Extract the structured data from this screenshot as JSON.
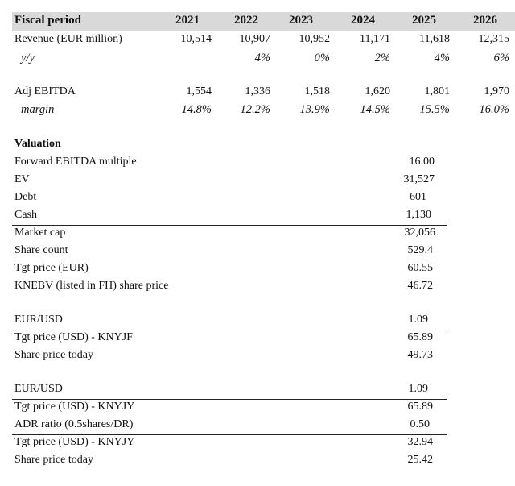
{
  "table": {
    "header_label": "Fiscal period",
    "years": [
      "2021",
      "2022",
      "2023",
      "2024",
      "2025",
      "2026"
    ],
    "rows": [
      {
        "label": "Revenue (EUR million)",
        "values": [
          "10,514",
          "10,907",
          "10,952",
          "11,171",
          "11,618",
          "12,315"
        ],
        "italic": false
      },
      {
        "label": "y/y",
        "values": [
          "",
          "4%",
          "0%",
          "2%",
          "4%",
          "6%"
        ],
        "italic": true
      },
      {
        "label": "Adj EBITDA",
        "values": [
          "1,554",
          "1,336",
          "1,518",
          "1,620",
          "1,801",
          "1,970"
        ],
        "italic": false
      },
      {
        "label": "margin",
        "values": [
          "14.8%",
          "12.2%",
          "13.9%",
          "14.5%",
          "15.5%",
          "16.0%"
        ],
        "italic": true
      }
    ]
  },
  "valuation": {
    "title": "Valuation",
    "rows": [
      {
        "label": "Forward EBITDA multiple",
        "value": "16.00"
      },
      {
        "label": "EV",
        "value": "31,527"
      },
      {
        "label": "Debt",
        "value": "601"
      },
      {
        "label": "Cash",
        "value": "1,130"
      },
      {
        "label": "Market cap",
        "value": "32,056"
      },
      {
        "label": "Share count",
        "value": "529.4"
      },
      {
        "label": "Tgt price (EUR)",
        "value": "60.55"
      },
      {
        "label": "KNEBV (listed in FH) share price",
        "value": "46.72"
      }
    ]
  },
  "usd_block": {
    "rows": [
      {
        "label": "EUR/USD",
        "value": "1.09"
      },
      {
        "label": "Tgt price (USD) - KNYJF",
        "value": "65.89"
      },
      {
        "label": "Share price today",
        "value": "49.73"
      }
    ]
  },
  "adr_block": {
    "rows": [
      {
        "label": "EUR/USD",
        "value": "1.09"
      },
      {
        "label": "Tgt price (USD) - KNYJY",
        "value": "65.89"
      },
      {
        "label": "ADR ratio (0.5shares/DR)",
        "value": "0.50"
      },
      {
        "label": "Tgt price (USD) - KNYJY",
        "value": "32.94"
      },
      {
        "label": "Share price today",
        "value": "25.42"
      }
    ]
  }
}
